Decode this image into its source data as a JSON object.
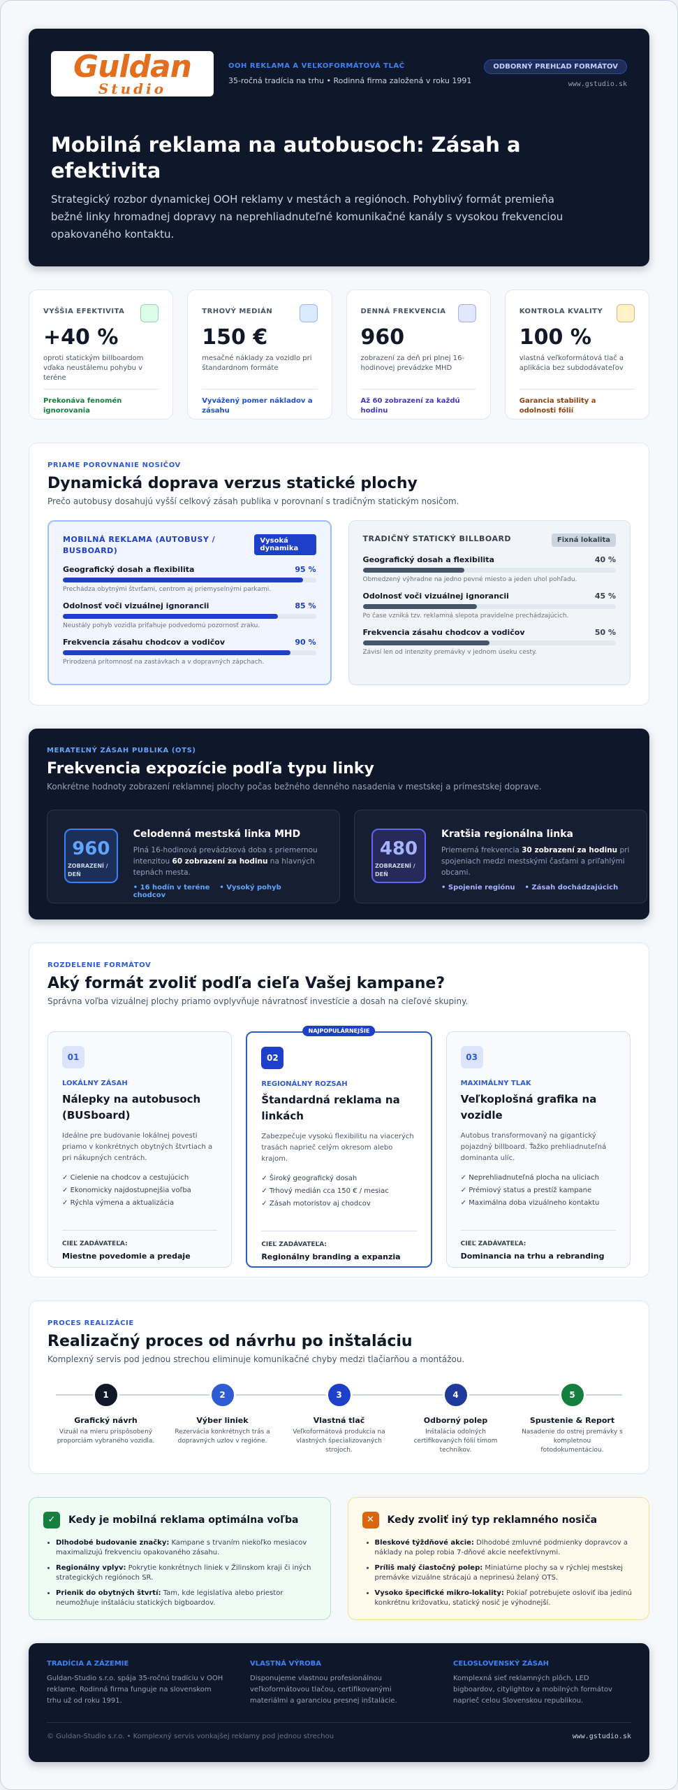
{
  "header": {
    "logo": {
      "word": "Guldan",
      "sub": "Studio"
    },
    "tagline": "OOH REKLAMA A VEĽKOFORMÁTOVÁ TLAČ",
    "subline": "35-ročná tradícia na trhu • Rodinná firma založená v roku 1991",
    "badge": "ODBORNÝ PREHĽAD FORMÁTOV",
    "url": "www.gstudio.sk",
    "title": "Mobilná reklama na autobusoch: Zásah a efektivita",
    "lead": "Strategický rozbor dynamickej OOH reklamy v mestách a regiónoch. Pohyblivý formát premieňa bežné linky hromadnej dopravy na neprehliadnuteľné komunikačné kanály s vysokou frekvenciou opakovaného kontaktu."
  },
  "kpis": [
    {
      "label": "VYŠŠIA EFEKTIVITA",
      "value": "+40 %",
      "desc": "oproti statickým billboardom vďaka neustálemu pohybu v teréne",
      "note": "Prekonáva fenomén ignorovania"
    },
    {
      "label": "TRHOVÝ MEDIÁN",
      "value": "150 €",
      "desc": "mesačné náklady za vozidlo pri štandardnom formáte",
      "note": "Vyvážený pomer nákladov a zásahu"
    },
    {
      "label": "DENNÁ FREKVENCIA",
      "value": "960",
      "desc": "zobrazení za deň pri plnej 16-hodinovej prevádzke MHD",
      "note": "Až 60 zobrazení za každú hodinu"
    },
    {
      "label": "KONTROLA KVALITY",
      "value": "100 %",
      "desc": "vlastná veľkoformátová tlač a aplikácia bez subdodávateľov",
      "note": "Garancia stability a odolnosti fólií"
    }
  ],
  "comparison": {
    "eyebrow": "PRIAME POROVNANIE NOSIČOV",
    "title": "Dynamická doprava verzus statické plochy",
    "subtitle": "Prečo autobusy dosahujú vyšší celkový zásah publika v porovnaní s tradičným statickým nosičom.",
    "panels": [
      {
        "title": "MOBILNÁ REKLAMA (AUTOBUSY / BUSBOARD)",
        "tag": "Vysoká dynamika",
        "rows": [
          {
            "label": "Geografický dosah a flexibilita",
            "value": 95,
            "value_label": "95 %",
            "note": "Prechádza obytnými štvrťami, centrom aj priemyselnými parkami."
          },
          {
            "label": "Odolnosť voči vizuálnej ignorancii",
            "value": 85,
            "value_label": "85 %",
            "note": "Neustály pohyb vozidla priťahuje podvedomú pozornosť zraku."
          },
          {
            "label": "Frekvencia zásahu chodcov a vodičov",
            "value": 90,
            "value_label": "90 %",
            "note": "Prirodzená prítomnosť na zastávkach a v dopravných zápchach."
          }
        ]
      },
      {
        "title": "TRADIČNÝ STATICKÝ BILLBOARD",
        "tag": "Fixná lokalita",
        "rows": [
          {
            "label": "Geografický dosah a flexibilita",
            "value": 40,
            "value_label": "40 %",
            "note": "Obmedzený výhradne na jedno pevné miesto a jeden uhol pohľadu."
          },
          {
            "label": "Odolnosť voči vizuálnej ignorancii",
            "value": 45,
            "value_label": "45 %",
            "note": "Po čase vzniká tzv. reklamná slepota pravidelne prechádzajúcich."
          },
          {
            "label": "Frekvencia zásahu chodcov a vodičov",
            "value": 50,
            "value_label": "50 %",
            "note": "Závisí len od intenzity premávky v jednom úseku cesty."
          }
        ]
      }
    ]
  },
  "frequency": {
    "eyebrow": "MERATEĽNÝ ZÁSAH PUBLIKA (OTS)",
    "title": "Frekvencia expozície podľa typu linky",
    "subtitle": "Konkrétne hodnoty zobrazení reklamnej plochy počas bežného denného nasadenia v mestskej a prímestskej doprave.",
    "cards": [
      {
        "number": "960",
        "unit": "ZOBRAZENÍ / DEŇ",
        "title": "Celodenná mestská linka MHD",
        "text": [
          "Plná 16-hodinová prevádzková doba s priemernou intenzitou ",
          "60 zobrazení za hodinu",
          " na hlavných tepnách mesta."
        ],
        "tags": [
          "16 hodín v teréne",
          "Vysoký pohyb chodcov"
        ]
      },
      {
        "number": "480",
        "unit": "ZOBRAZENÍ / DEŇ",
        "title": "Kratšia regionálna linka",
        "text": [
          "Priemerná frekvencia ",
          "30 zobrazení za hodinu",
          " pri spojeniach medzi mestskými časťami a priľahlými obcami."
        ],
        "tags": [
          "Spojenie regiónu",
          "Zásah dochádzajúcich"
        ]
      }
    ]
  },
  "formats": {
    "eyebrow": "ROZDELENIE FORMÁTOV",
    "title": "Aký formát zvoliť podľa cieľa Vašej kampane?",
    "subtitle": "Správna voľba vizuálnej plochy priamo ovplyvňuje návratnosť investície a dosah na cieľové skupiny.",
    "badge": "NAJPOPULÁRNEJŠIE",
    "cards": [
      {
        "num": "01",
        "level": "LOKÁLNY ZÁSAH",
        "name": "Nálepky na autobusoch (BUSboard)",
        "desc": "Ideálne pre budovanie lokálnej povesti priamo v konkrétnych obytných štvrtiach a pri nákupných centrách.",
        "items": [
          "Cielenie na chodcov a cestujúcich",
          "Ekonomicky najdostupnejšia voľba",
          "Rýchla výmena a aktualizácia"
        ],
        "goal_label": "CIEĽ ZADÁVATEĽA:",
        "goal": "Miestne povedomie a predaje"
      },
      {
        "num": "02",
        "level": "REGIONÁLNY ROZSAH",
        "name": "Štandardná reklama na linkách",
        "desc": "Zabezpečuje vysokú flexibilitu na viacerých trasách naprieč celým okresom alebo krajom.",
        "items": [
          "Široký geografický dosah",
          "Trhový medián cca 150 € / mesiac",
          "Zásah motoristov aj chodcov"
        ],
        "goal_label": "CIEĽ ZADÁVATEĽA:",
        "goal": "Regionálny branding a expanzia"
      },
      {
        "num": "03",
        "level": "MAXIMÁLNY TLAK",
        "name": "Veľkoplošná grafika na vozidle",
        "desc": "Autobus transformovaný na gigantický pojazdný billboard. Ťažko prehliadnuteľná dominanta ulíc.",
        "items": [
          "Neprehliadnuteľná plocha na uliciach",
          "Prémiový status a prestíž kampane",
          "Maximálna doba vizuálneho kontaktu"
        ],
        "goal_label": "CIEĽ ZADÁVATEĽA:",
        "goal": "Dominancia na trhu a rebranding"
      }
    ]
  },
  "process": {
    "eyebrow": "PROCES REALIZÁCIE",
    "title": "Realizačný proces od návrhu po inštaláciu",
    "subtitle": "Komplexný servis pod jednou strechou eliminuje komunikačné chyby medzi tlačiarňou a montážou.",
    "steps": [
      {
        "num": "1",
        "title": "Grafický návrh",
        "desc": "Vizuál na mieru prispôsobený proporciám vybraného vozidla."
      },
      {
        "num": "2",
        "title": "Výber liniek",
        "desc": "Rezervácia konkrétnych trás a dopravných uzlov v regióne."
      },
      {
        "num": "3",
        "title": "Vlastná tlač",
        "desc": "Veľkoformátová produkcia na vlastných špecializovaných strojoch."
      },
      {
        "num": "4",
        "title": "Odborný polep",
        "desc": "Inštalácia odolných certifikovaných fólií tímom technikov."
      },
      {
        "num": "5",
        "title": "Spustenie & Report",
        "desc": "Nasadenie do ostrej premávky s kompletnou fotodokumentáciou."
      }
    ]
  },
  "advice": [
    {
      "title": "Kedy je mobilná reklama optimálna voľba",
      "items": [
        {
          "lead": "Dlhodobé budovanie značky:",
          "text": " Kampane s trvaním niekoľko mesiacov maximalizujú frekvenciu opakovaného zásahu."
        },
        {
          "lead": "Regionálny vplyv:",
          "text": " Pokrytie konkrétnych liniek v Žilinskom kraji či iných strategických regiónoch SR."
        },
        {
          "lead": "Prienik do obytných štvrtí:",
          "text": " Tam, kde legislatíva alebo priestor neumožňuje inštaláciu statických bigboardov."
        }
      ]
    },
    {
      "title": "Kedy zvoliť iný typ reklamného nosiča",
      "items": [
        {
          "lead": "Bleskové týždňové akcie:",
          "text": " Dlhodobé zmluvné podmienky dopravcov a náklady na polep robia 7-dňové akcie neefektívnymi."
        },
        {
          "lead": "Príliš malý čiastočný polep:",
          "text": " Miniatúrne plochy sa v rýchlej mestskej premávke vizuálne strácajú a neprinesú želaný OTS."
        },
        {
          "lead": "Vysoko špecifické mikro-lokality:",
          "text": " Pokiaľ potrebujete osloviť iba jedinú konkrétnu križovatku, statický nosič je výhodnejší."
        }
      ]
    }
  ],
  "footer": {
    "columns": [
      {
        "title": "TRADÍCIA A ZÁZEMIE",
        "text": "Guldan-Studio s.r.o. spája 35-ročnú tradíciu v OOH reklame. Rodinná firma funguje na slovenskom trhu už od roku 1991."
      },
      {
        "title": "VLASTNÁ VÝROBA",
        "text": "Disponujeme vlastnou profesionálnou veľkoformátovou tlačou, certifikovanými materiálmi a garanciou presnej inštalácie."
      },
      {
        "title": "CELOSLOVENSKÝ ZÁSAH",
        "text": "Komplexná sieť reklamných plôch, LED bigboardov, citylightov a mobilných formátov naprieč celou Slovenskou republikou."
      }
    ],
    "copyright": "© Guldan-Studio s.r.o. • Komplexný servis vonkajšej reklamy pod jednou strechou",
    "url": "www.gstudio.sk"
  }
}
